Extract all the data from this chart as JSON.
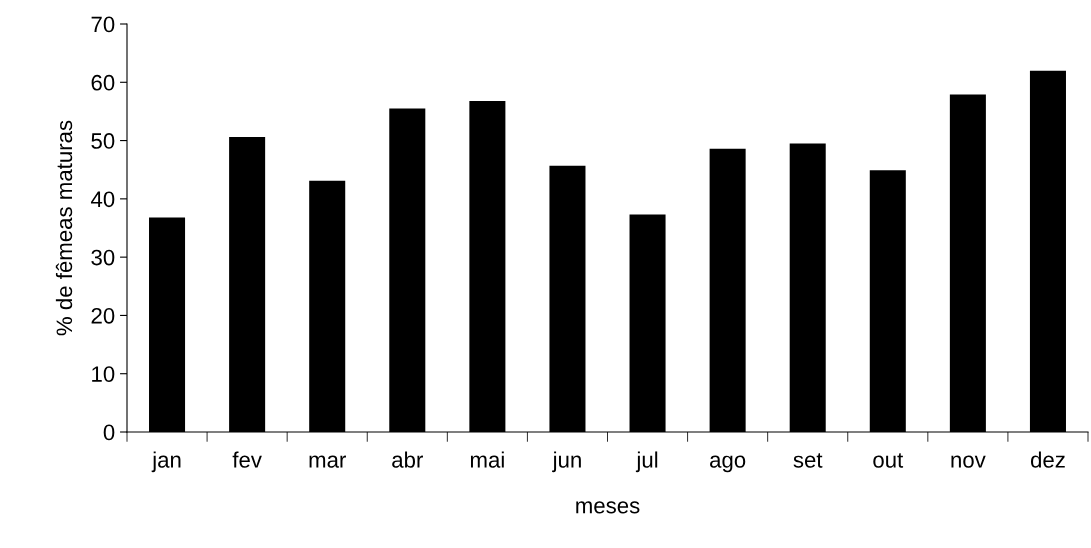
{
  "chart_data": {
    "type": "bar",
    "xlabel": "meses",
    "ylabel": "% de fêmeas maturas",
    "categories": [
      "jan",
      "fev",
      "mar",
      "abr",
      "mai",
      "jun",
      "jul",
      "ago",
      "set",
      "out",
      "nov",
      "dez"
    ],
    "values": [
      36.8,
      50.6,
      43.1,
      55.5,
      56.8,
      45.7,
      37.3,
      48.6,
      49.5,
      44.9,
      57.9,
      62.0
    ],
    "color": "#000000",
    "ylim": [
      0,
      70
    ],
    "yticks": [
      0,
      10,
      20,
      30,
      40,
      50,
      60,
      70
    ],
    "grid": false,
    "legend": false
  }
}
